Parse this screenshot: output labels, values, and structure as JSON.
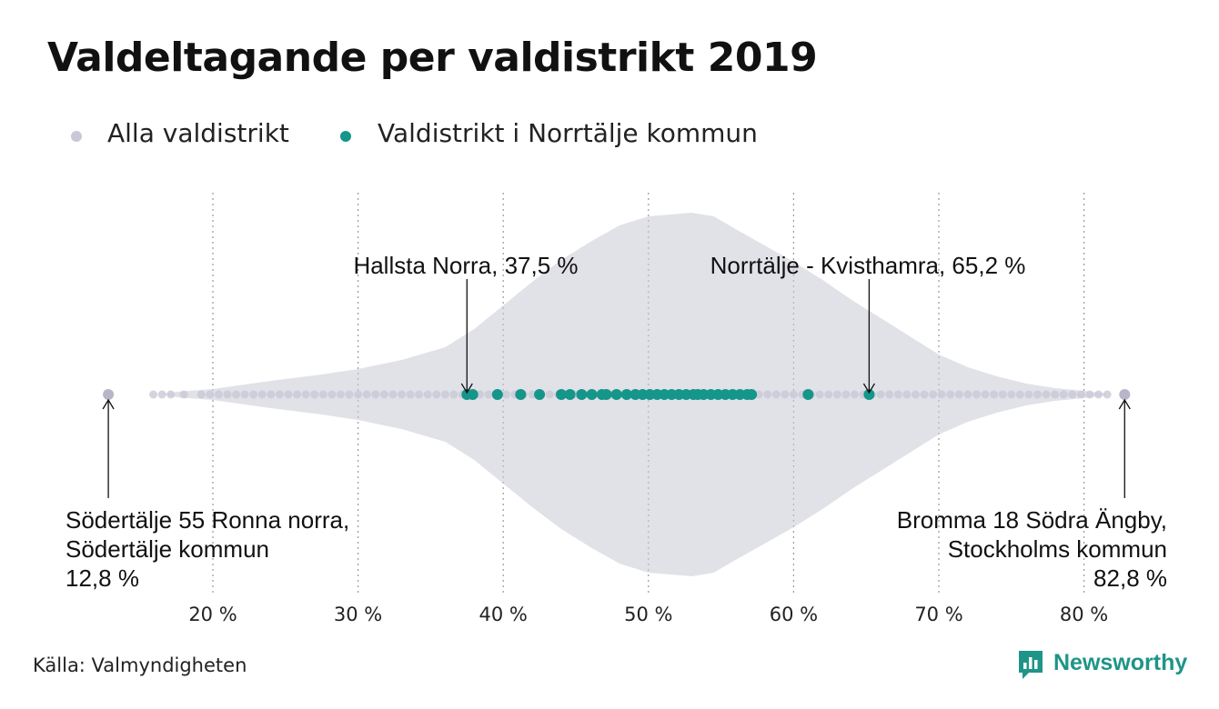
{
  "title": "Valdeltagande per valdistrikt 2019",
  "legend": [
    {
      "label": "Alla valdistrikt",
      "color": "#c9c8d6"
    },
    {
      "label": "Valdistrikt i Norrtälje kommun",
      "color": "#14968a"
    }
  ],
  "source": "Källa: Valmyndigheten",
  "brand": "Newsworthy",
  "colors": {
    "all": "#c9c8d6",
    "highlight": "#14968a",
    "grid": "#9a9a9a",
    "text": "#111111"
  },
  "chart_data": {
    "type": "scatter",
    "subtype": "beeswarm",
    "title": "Valdeltagande per valdistrikt 2019",
    "xlim": [
      12.0,
      84.0
    ],
    "x_ticks": [
      20,
      30,
      40,
      50,
      60,
      70,
      80
    ],
    "x_tick_labels": [
      "20 %",
      "30 %",
      "40 %",
      "50 %",
      "60 %",
      "70 %",
      "80 %"
    ],
    "grid": true,
    "legend_position": "top-left",
    "series": [
      {
        "name": "Alla valdistrikt",
        "color": "#c9c8d6",
        "values": [
          12.8,
          15.9,
          16.5,
          17.1,
          18.0,
          19.2,
          19.8,
          20.4,
          21.0,
          21.6,
          22.2,
          22.8,
          23.4,
          24.0,
          24.6,
          25.2,
          25.8,
          26.4,
          27.0,
          27.6,
          28.2,
          28.8,
          29.4,
          30.0,
          30.6,
          31.2,
          31.8,
          32.4,
          33.0,
          33.6,
          34.2,
          34.8,
          35.4,
          36.0,
          36.6,
          37.2,
          37.8,
          38.4,
          39.0,
          39.6,
          40.2,
          40.8,
          41.4,
          42.0,
          42.6,
          43.2,
          43.8,
          44.4,
          45.0,
          45.6,
          46.2,
          46.8,
          47.4,
          48.0,
          48.6,
          49.2,
          49.8,
          50.4,
          51.0,
          51.6,
          52.2,
          52.8,
          53.4,
          54.0,
          54.6,
          55.2,
          55.8,
          56.4,
          57.0,
          57.6,
          58.2,
          58.8,
          59.4,
          60.0,
          60.6,
          61.2,
          61.8,
          62.4,
          63.0,
          63.6,
          64.2,
          64.8,
          65.4,
          66.0,
          66.6,
          67.2,
          67.8,
          68.4,
          69.0,
          69.6,
          70.2,
          70.8,
          71.4,
          72.0,
          72.6,
          73.2,
          73.8,
          74.4,
          75.0,
          75.6,
          76.2,
          76.8,
          77.4,
          78.0,
          78.6,
          79.2,
          79.8,
          80.4,
          81.0,
          81.6,
          82.8
        ]
      },
      {
        "name": "Valdistrikt i Norrtälje kommun",
        "color": "#14968a",
        "values": [
          37.5,
          37.9,
          39.6,
          41.2,
          42.5,
          44.0,
          44.6,
          45.4,
          46.1,
          46.8,
          47.1,
          47.8,
          48.5,
          49.1,
          49.6,
          50.1,
          50.6,
          51.1,
          51.6,
          52.1,
          52.6,
          53.1,
          53.4,
          53.8,
          54.3,
          54.8,
          55.3,
          55.8,
          56.3,
          56.8,
          57.1,
          61.0,
          65.2
        ]
      }
    ],
    "annotations": [
      {
        "lines": [
          "Hallsta Norra, 37,5 %"
        ],
        "value": 37.5
      },
      {
        "lines": [
          "Norrtälje - Kvisthamra, 65,2 %"
        ],
        "value": 65.2
      },
      {
        "lines": [
          "Södertälje 55 Ronna norra,",
          "Södertälje kommun",
          "12,8 %"
        ],
        "value": 12.8
      },
      {
        "lines": [
          "Bromma 18 Södra Ängby,",
          "Stockholms kommun",
          "82,8 %"
        ],
        "value": 82.8
      }
    ]
  }
}
